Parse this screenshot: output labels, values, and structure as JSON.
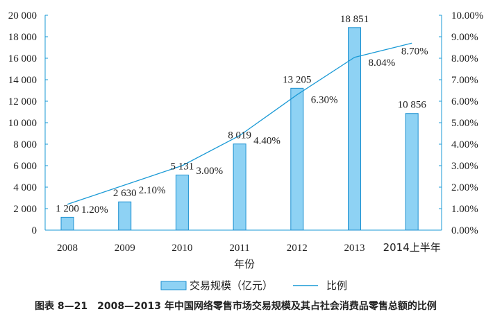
{
  "chart_data": {
    "type": "bar",
    "categories": [
      "2008",
      "2009",
      "2010",
      "2011",
      "2012",
      "2013",
      "2014上半年"
    ],
    "series": [
      {
        "name": "交易规模（亿元）",
        "type": "bar",
        "axis": "left",
        "values": [
          1200,
          2630,
          5131,
          8019,
          13205,
          18851,
          10856
        ],
        "labels": [
          "1 200",
          "2 630",
          "5 131",
          "8 019",
          "13 205",
          "18 851",
          "10 856"
        ]
      },
      {
        "name": "比例",
        "type": "line",
        "axis": "right",
        "values": [
          1.2,
          2.1,
          3.0,
          4.4,
          6.3,
          8.04,
          8.7
        ],
        "labels": [
          "1.20%",
          "2.10%",
          "3.00%",
          "4.40%",
          "6.30%",
          "8.04%",
          "8.70%"
        ]
      }
    ],
    "xlabel": "年份",
    "ylim": [
      0,
      20000
    ],
    "y2lim": [
      0,
      10
    ],
    "yticks": [
      "0",
      "2 000",
      "4 000",
      "6 000",
      "8 000",
      "10 000",
      "12 000",
      "14 000",
      "16 000",
      "18 000",
      "20 000"
    ],
    "y2ticks": [
      "0.00%",
      "1.00%",
      "2.00%",
      "3.00%",
      "4.00%",
      "5.00%",
      "6.00%",
      "7.00%",
      "8.00%",
      "9.00%",
      "10.00%"
    ],
    "legend_position": "bottom",
    "grid": false,
    "caption": "图表 8—21　2008—2013 年中国网络零售市场交易规模及其占社会消费品零售总额的比例",
    "colors": {
      "bar_fill": "#8ed2f4",
      "bar_stroke": "#1a8fd0",
      "line": "#1a9ad6",
      "axis": "#1a9ad6"
    }
  }
}
